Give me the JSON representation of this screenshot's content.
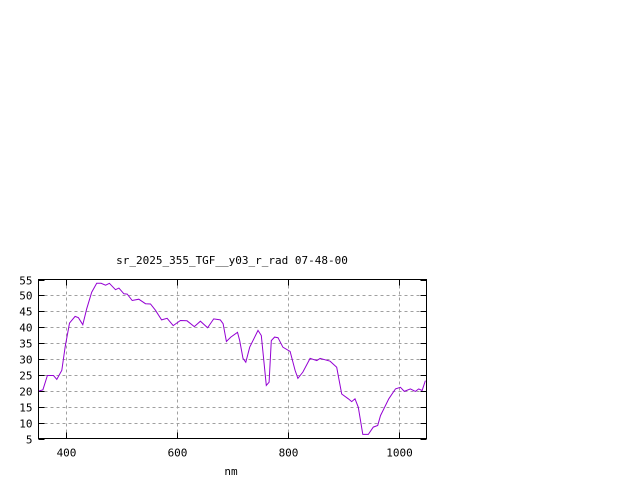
{
  "chart_data": {
    "type": "line",
    "title": "sr_2025_355_TGF__y03_r_rad 07-48-00",
    "xlabel": "nm",
    "ylabel": "",
    "xlim": [
      350,
      1050
    ],
    "ylim": [
      5,
      55
    ],
    "xticks": [
      400,
      600,
      800,
      1000
    ],
    "yticks": [
      5,
      10,
      15,
      20,
      25,
      30,
      35,
      40,
      45,
      50,
      55
    ],
    "grid": true,
    "line_color": "#9400d3",
    "series": [
      {
        "x": [
          350,
          358,
          366,
          377,
          383,
          392,
          398,
          406,
          416,
          422,
          430,
          437,
          446,
          455,
          463,
          471,
          478,
          489,
          495,
          504,
          510,
          519,
          531,
          543,
          552,
          561,
          572,
          582,
          593,
          606,
          618,
          631,
          642,
          655,
          666,
          678,
          683,
          689,
          697,
          709,
          713,
          719,
          724,
          731,
          746,
          752,
          761,
          766,
          770,
          776,
          782,
          791,
          804,
          813,
          818,
          827,
          840,
          852,
          858,
          876,
          888,
          897,
          909,
          915,
          921,
          927,
          935,
          945,
          954,
          962,
          967,
          982,
          994,
          1003,
          1010,
          1021,
          1030,
          1036,
          1042,
          1048
        ],
        "y": [
          19.9,
          20.3,
          24.8,
          24.8,
          23.6,
          26.4,
          33.7,
          41.3,
          43.4,
          43,
          40.8,
          45.8,
          51,
          53.8,
          53.8,
          53.2,
          53.8,
          51.8,
          52.3,
          50.5,
          50.4,
          48.4,
          48.8,
          47.4,
          47.3,
          45.3,
          42.3,
          42.8,
          40.5,
          42.1,
          42,
          40.2,
          41.9,
          39.8,
          42.6,
          42.3,
          41.1,
          35.5,
          36.9,
          38.4,
          35.8,
          30.2,
          29,
          33.7,
          39,
          37.4,
          21.7,
          22.7,
          35.8,
          36.9,
          36.7,
          33.7,
          32.4,
          26.4,
          23.9,
          25.9,
          30.2,
          29.5,
          30.2,
          29.3,
          27.4,
          19,
          17.5,
          16.6,
          17.5,
          14.8,
          6.3,
          6.3,
          8.6,
          9.1,
          12.2,
          17.5,
          20.6,
          21.1,
          19.8,
          20.6,
          19.8,
          20.6,
          20.1,
          23.2
        ]
      }
    ]
  }
}
